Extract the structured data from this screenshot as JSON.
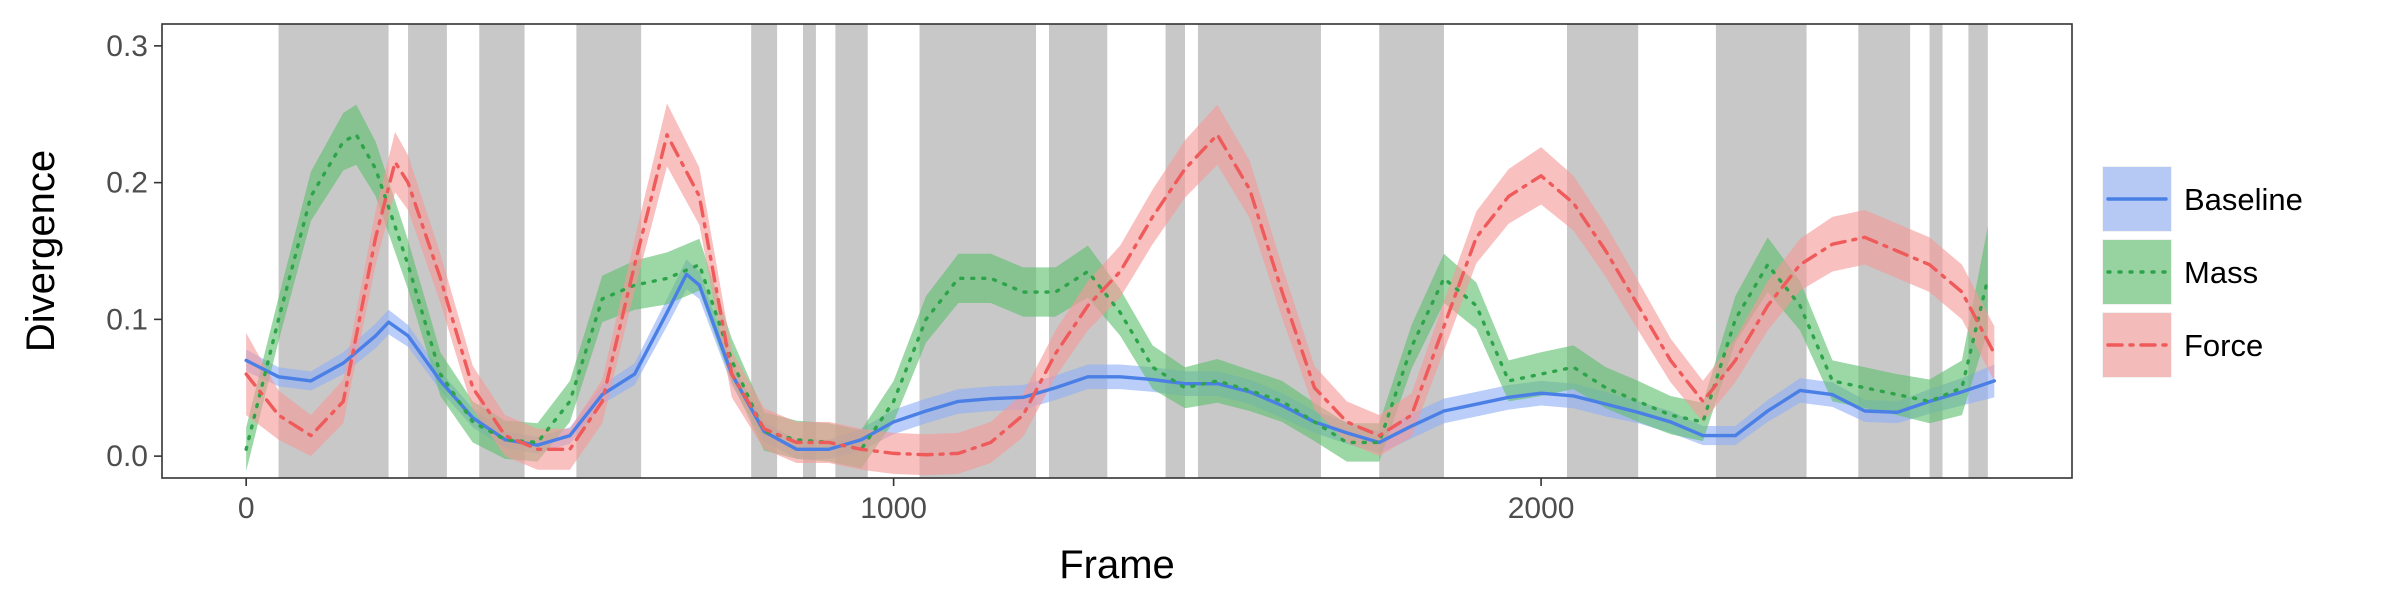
{
  "chart_data": {
    "type": "line",
    "title": "",
    "xlabel": "Frame",
    "ylabel": "Divergence",
    "xlim": [
      -130,
      2820
    ],
    "ylim": [
      -0.016,
      0.316
    ],
    "xticks": [
      0,
      1000,
      2000
    ],
    "xtick_labels": [
      "0",
      "1000",
      "2000"
    ],
    "yticks": [
      0,
      0.1,
      0.2,
      0.3
    ],
    "ytick_labels": [
      "0.0",
      "0.1",
      "0.2",
      "0.3"
    ],
    "grid": false,
    "legend_position": "right",
    "shaded_intervals": [
      [
        50,
        220
      ],
      [
        250,
        310
      ],
      [
        360,
        430
      ],
      [
        510,
        610
      ],
      [
        780,
        820
      ],
      [
        860,
        880
      ],
      [
        910,
        960
      ],
      [
        1040,
        1220
      ],
      [
        1240,
        1330
      ],
      [
        1420,
        1450
      ],
      [
        1470,
        1660
      ],
      [
        1750,
        1850
      ],
      [
        2040,
        2150
      ],
      [
        2270,
        2410
      ],
      [
        2490,
        2570
      ],
      [
        2600,
        2620
      ],
      [
        2660,
        2690
      ]
    ],
    "series": [
      {
        "name": "Baseline",
        "color": "#4a7fe6",
        "band_color": "#8fb0f5",
        "dash": "solid",
        "x": [
          0,
          50,
          100,
          150,
          200,
          220,
          250,
          300,
          350,
          400,
          450,
          500,
          550,
          600,
          650,
          680,
          700,
          750,
          800,
          850,
          900,
          950,
          1000,
          1050,
          1100,
          1150,
          1200,
          1250,
          1300,
          1350,
          1400,
          1450,
          1500,
          1550,
          1600,
          1650,
          1700,
          1750,
          1800,
          1850,
          1900,
          1950,
          2000,
          2050,
          2100,
          2150,
          2200,
          2250,
          2300,
          2350,
          2400,
          2450,
          2500,
          2550,
          2600,
          2650,
          2700
        ],
        "y": [
          0.07,
          0.058,
          0.055,
          0.068,
          0.088,
          0.098,
          0.088,
          0.055,
          0.028,
          0.012,
          0.008,
          0.015,
          0.045,
          0.06,
          0.105,
          0.133,
          0.125,
          0.06,
          0.018,
          0.005,
          0.005,
          0.012,
          0.025,
          0.033,
          0.04,
          0.042,
          0.043,
          0.05,
          0.058,
          0.058,
          0.056,
          0.053,
          0.053,
          0.047,
          0.037,
          0.025,
          0.017,
          0.01,
          0.022,
          0.033,
          0.038,
          0.043,
          0.046,
          0.044,
          0.038,
          0.032,
          0.025,
          0.015,
          0.015,
          0.033,
          0.048,
          0.045,
          0.033,
          0.032,
          0.04,
          0.047,
          0.055
        ],
        "band": [
          0.008,
          0.007,
          0.007,
          0.008,
          0.009,
          0.009,
          0.008,
          0.007,
          0.007,
          0.006,
          0.006,
          0.006,
          0.007,
          0.008,
          0.01,
          0.011,
          0.01,
          0.008,
          0.007,
          0.007,
          0.007,
          0.008,
          0.009,
          0.009,
          0.009,
          0.009,
          0.009,
          0.009,
          0.009,
          0.009,
          0.009,
          0.009,
          0.009,
          0.009,
          0.009,
          0.008,
          0.008,
          0.008,
          0.009,
          0.009,
          0.009,
          0.009,
          0.009,
          0.009,
          0.009,
          0.008,
          0.008,
          0.007,
          0.007,
          0.008,
          0.009,
          0.009,
          0.008,
          0.008,
          0.009,
          0.01,
          0.012
        ]
      },
      {
        "name": "Mass",
        "color": "#2ea44a",
        "band_color": "#5fbf6f",
        "dash": "dotted",
        "x": [
          0,
          50,
          100,
          150,
          170,
          200,
          250,
          300,
          350,
          400,
          450,
          500,
          550,
          600,
          650,
          700,
          750,
          800,
          850,
          900,
          950,
          1000,
          1050,
          1100,
          1150,
          1200,
          1250,
          1300,
          1350,
          1400,
          1450,
          1500,
          1550,
          1600,
          1650,
          1700,
          1750,
          1800,
          1850,
          1900,
          1950,
          2000,
          2050,
          2100,
          2150,
          2200,
          2250,
          2300,
          2350,
          2400,
          2450,
          2500,
          2550,
          2600,
          2650,
          2690
        ],
        "y": [
          0.005,
          0.1,
          0.19,
          0.23,
          0.235,
          0.21,
          0.14,
          0.06,
          0.025,
          0.012,
          0.01,
          0.04,
          0.115,
          0.125,
          0.13,
          0.14,
          0.07,
          0.018,
          0.012,
          0.01,
          0.005,
          0.04,
          0.1,
          0.13,
          0.13,
          0.12,
          0.12,
          0.135,
          0.105,
          0.065,
          0.05,
          0.055,
          0.048,
          0.04,
          0.025,
          0.01,
          0.01,
          0.08,
          0.13,
          0.11,
          0.055,
          0.06,
          0.065,
          0.05,
          0.04,
          0.03,
          0.025,
          0.1,
          0.14,
          0.11,
          0.055,
          0.05,
          0.045,
          0.04,
          0.05,
          0.13
        ],
        "band": [
          0.016,
          0.016,
          0.018,
          0.021,
          0.022,
          0.02,
          0.018,
          0.016,
          0.015,
          0.014,
          0.014,
          0.015,
          0.017,
          0.018,
          0.019,
          0.019,
          0.016,
          0.014,
          0.014,
          0.014,
          0.014,
          0.015,
          0.017,
          0.018,
          0.018,
          0.018,
          0.018,
          0.019,
          0.017,
          0.016,
          0.015,
          0.016,
          0.015,
          0.015,
          0.014,
          0.014,
          0.014,
          0.016,
          0.018,
          0.017,
          0.015,
          0.016,
          0.016,
          0.015,
          0.015,
          0.014,
          0.014,
          0.017,
          0.02,
          0.018,
          0.015,
          0.015,
          0.015,
          0.016,
          0.02,
          0.038
        ]
      },
      {
        "name": "Force",
        "color": "#ef5a5a",
        "band_color": "#f59a9a",
        "dash": "dashdot",
        "x": [
          0,
          50,
          100,
          150,
          200,
          230,
          250,
          300,
          350,
          400,
          450,
          500,
          550,
          600,
          650,
          700,
          750,
          800,
          850,
          900,
          950,
          1000,
          1050,
          1100,
          1150,
          1200,
          1250,
          1300,
          1350,
          1400,
          1450,
          1500,
          1550,
          1600,
          1650,
          1700,
          1750,
          1800,
          1850,
          1900,
          1950,
          2000,
          2050,
          2100,
          2150,
          2200,
          2250,
          2300,
          2350,
          2400,
          2450,
          2500,
          2550,
          2600,
          2650,
          2700
        ],
        "y": [
          0.06,
          0.03,
          0.015,
          0.04,
          0.16,
          0.215,
          0.2,
          0.13,
          0.05,
          0.015,
          0.005,
          0.005,
          0.04,
          0.14,
          0.235,
          0.19,
          0.06,
          0.02,
          0.01,
          0.01,
          0.005,
          0.002,
          0.001,
          0.002,
          0.01,
          0.03,
          0.075,
          0.11,
          0.135,
          0.175,
          0.21,
          0.235,
          0.195,
          0.12,
          0.05,
          0.025,
          0.015,
          0.03,
          0.095,
          0.16,
          0.19,
          0.205,
          0.185,
          0.15,
          0.11,
          0.07,
          0.04,
          0.07,
          0.11,
          0.14,
          0.155,
          0.16,
          0.15,
          0.14,
          0.12,
          0.075
        ],
        "band": [
          0.03,
          0.018,
          0.015,
          0.016,
          0.02,
          0.022,
          0.02,
          0.018,
          0.016,
          0.015,
          0.015,
          0.015,
          0.016,
          0.019,
          0.023,
          0.021,
          0.017,
          0.015,
          0.015,
          0.015,
          0.015,
          0.015,
          0.015,
          0.015,
          0.015,
          0.016,
          0.017,
          0.018,
          0.019,
          0.02,
          0.021,
          0.022,
          0.021,
          0.019,
          0.016,
          0.015,
          0.015,
          0.016,
          0.018,
          0.019,
          0.02,
          0.021,
          0.02,
          0.019,
          0.018,
          0.016,
          0.015,
          0.016,
          0.018,
          0.019,
          0.02,
          0.02,
          0.02,
          0.02,
          0.02,
          0.02
        ]
      }
    ]
  }
}
